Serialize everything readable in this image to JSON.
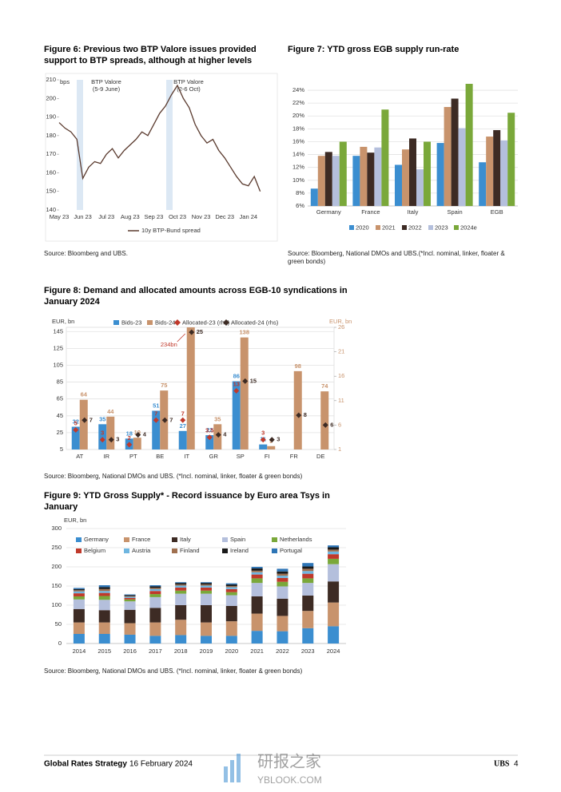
{
  "chart_data": [
    {
      "type": "line",
      "title": "Figure 6: Previous two BTP Valore issues provided support to BTP spreads, although at higher levels",
      "y_label": "bps",
      "categories": [
        "May 23",
        null,
        null,
        null,
        "Jun 23",
        null,
        null,
        null,
        "Jul 23",
        null,
        null,
        null,
        "Aug 23",
        null,
        null,
        null,
        "Sep 23",
        null,
        null,
        null,
        "Oct 23",
        null,
        null,
        null,
        "Nov 23",
        null,
        null,
        null,
        "Dec 23",
        null,
        null,
        null,
        "Jan 24",
        null,
        null
      ],
      "series": [
        {
          "name": "10y BTP-Bund spread",
          "color": "#5a3a2e",
          "values": [
            187,
            184,
            182,
            178,
            157,
            163,
            166,
            165,
            170,
            173,
            168,
            172,
            175,
            178,
            182,
            180,
            186,
            192,
            196,
            202,
            207,
            200,
            195,
            186,
            180,
            176,
            178,
            172,
            168,
            163,
            158,
            154,
            153,
            158,
            150
          ]
        }
      ],
      "ylim": [
        140,
        210
      ],
      "yticks": [
        140,
        150,
        160,
        170,
        180,
        190,
        200,
        210
      ],
      "annotations": [
        [
          "BTP Valore",
          "(5-9 June)"
        ],
        [
          "BTP Valore",
          "(2-6 Oct)"
        ]
      ],
      "source": "Source: Bloomberg and UBS."
    },
    {
      "type": "grouped_bar",
      "title": "Figure 7: YTD gross EGB supply run-rate",
      "categories": [
        "Germany",
        "France",
        "Italy",
        "Spain",
        "EGB"
      ],
      "series": [
        {
          "name": "2020",
          "color": "#3b8ed0",
          "values": [
            8.7,
            13.8,
            12.4,
            15.8,
            12.8
          ]
        },
        {
          "name": "2021",
          "color": "#c8936c",
          "values": [
            13.8,
            15.2,
            14.8,
            21.4,
            16.8
          ]
        },
        {
          "name": "2022",
          "color": "#3d2b24",
          "values": [
            14.4,
            14.3,
            16.5,
            22.7,
            17.8
          ]
        },
        {
          "name": "2023",
          "color": "#b4bfdc",
          "values": [
            13.8,
            15.1,
            11.7,
            18.1,
            16.2
          ]
        },
        {
          "name": "2024e",
          "color": "#7aa83a",
          "values": [
            16.0,
            21.0,
            16.0,
            25.0,
            20.5
          ]
        }
      ],
      "ylim": [
        6,
        25
      ],
      "yticks": [
        {
          "value": 6,
          "label": "6%"
        },
        {
          "value": 8,
          "label": "8%"
        },
        {
          "value": 10,
          "label": "10%"
        },
        {
          "value": 12,
          "label": "12%"
        },
        {
          "value": 14,
          "label": "14%"
        },
        {
          "value": 16,
          "label": "16%"
        },
        {
          "value": 18,
          "label": "18%"
        },
        {
          "value": 20,
          "label": "20%"
        },
        {
          "value": 22,
          "label": "22%"
        },
        {
          "value": 24,
          "label": "24%"
        }
      ],
      "grid": true,
      "source": "Source: Bloomberg, National DMOs and UBS.(*Incl. nominal, linker, floater & green bonds)"
    },
    {
      "type": "bar_dual",
      "title": "Figure 8: Demand and allocated amounts across EGB-10 syndications in January 2024",
      "y_label": "EUR, bn",
      "y2_label": "EUR, bn",
      "categories": [
        "AT",
        "IR",
        "PT",
        "BE",
        "IT",
        "GR",
        "SP",
        "FI",
        "FR",
        "DE"
      ],
      "series": [
        {
          "name": "Bids-23",
          "color": "#3b8ed0",
          "values": [
            32,
            35,
            18,
            51,
            27,
            22,
            86,
            11,
            null,
            null
          ]
        },
        {
          "name": "Bids-24",
          "color": "#c8936c",
          "values": [
            64,
            44,
            19,
            75,
            234,
            35,
            138,
            9,
            98,
            74
          ],
          "value_labels": [
            "64",
            "44",
            "19",
            "75",
            "234bn",
            "35",
            "138",
            "9",
            "98",
            "74"
          ]
        },
        {
          "name": "Allocated-23 (rhs)",
          "color": "#c0392b",
          "axis": "y2",
          "values": [
            5,
            3,
            2,
            7,
            7,
            3.5,
            13,
            3,
            null,
            null
          ]
        },
        {
          "name": "Allocated-24 (rhs)",
          "color": "#3d2b24",
          "axis": "y2",
          "values": [
            7,
            3,
            4,
            7,
            25,
            4,
            15,
            3,
            8,
            6
          ]
        }
      ],
      "ylim": [
        5,
        150
      ],
      "yticks": [
        5,
        25,
        45,
        65,
        85,
        105,
        125,
        145
      ],
      "y2lim": [
        1,
        26
      ],
      "y2ticks": [
        1,
        6,
        11,
        16,
        21,
        26
      ],
      "grid": true,
      "source": "Source: Bloomberg, National DMOs and UBS. (*Incl. nominal, linker, floater & green bonds)"
    },
    {
      "type": "stacked_bar",
      "title": "Figure 9: YTD Gross Supply* - Record issuance by Euro area Tsys in January",
      "y_label": "EUR, bn",
      "categories": [
        "2014",
        "2015",
        "2016",
        "2017",
        "2018",
        "2019",
        "2020",
        "2021",
        "2022",
        "2023",
        "2024"
      ],
      "series": [
        {
          "name": "Germany",
          "color": "#3b8ed0",
          "values": [
            25,
            25,
            23,
            20,
            22,
            20,
            20,
            33,
            32,
            40,
            45
          ]
        },
        {
          "name": "France",
          "color": "#c8936c",
          "values": [
            30,
            30,
            30,
            35,
            40,
            35,
            38,
            45,
            40,
            45,
            62
          ]
        },
        {
          "name": "Italy",
          "color": "#3d2b24",
          "values": [
            35,
            32,
            35,
            38,
            38,
            45,
            40,
            45,
            45,
            40,
            55
          ]
        },
        {
          "name": "Spain",
          "color": "#b4bfdc",
          "values": [
            25,
            27,
            22,
            28,
            30,
            30,
            28,
            35,
            32,
            33,
            45
          ]
        },
        {
          "name": "Netherlands",
          "color": "#7aa83a",
          "values": [
            8,
            10,
            5,
            8,
            8,
            8,
            8,
            12,
            12,
            12,
            14
          ]
        },
        {
          "name": "Belgium",
          "color": "#c0392b",
          "values": [
            8,
            8,
            4,
            8,
            8,
            8,
            8,
            10,
            10,
            12,
            12
          ]
        },
        {
          "name": "Austria",
          "color": "#6fb6e0",
          "values": [
            5,
            5,
            3,
            5,
            5,
            5,
            5,
            6,
            6,
            7,
            7
          ]
        },
        {
          "name": "Finland",
          "color": "#a0704f",
          "values": [
            3,
            5,
            2,
            3,
            3,
            3,
            3,
            4,
            5,
            6,
            5
          ]
        },
        {
          "name": "Ireland",
          "color": "#1a1a1a",
          "values": [
            3,
            5,
            2,
            4,
            4,
            4,
            4,
            6,
            6,
            6,
            6
          ]
        },
        {
          "name": "Portugal",
          "color": "#2e75b6",
          "values": [
            3,
            5,
            2,
            3,
            2,
            2,
            3,
            4,
            7,
            9,
            5
          ]
        }
      ],
      "ylim": [
        0,
        300
      ],
      "yticks": [
        0,
        50,
        100,
        150,
        200,
        250,
        300
      ],
      "grid": true,
      "source": "Source: Bloomberg, National DMOs and UBS. (*Incl. nominal, linker, floater & green bonds)"
    }
  ],
  "footer": {
    "series": "Global Rates Strategy",
    "date": "16 February 2024",
    "brand": "UBS",
    "page": "4"
  },
  "watermark": {
    "name": "研报之家",
    "site": "YBLOOK.COM"
  }
}
